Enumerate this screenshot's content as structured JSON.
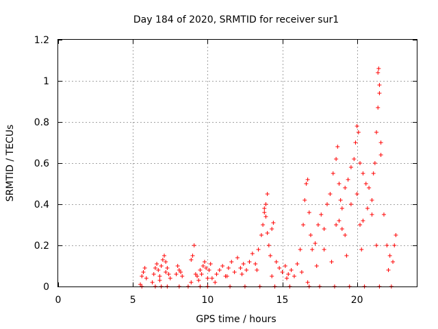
{
  "chart_data": {
    "type": "scatter",
    "title": "Day 184 of 2020, SRMTID for receiver sur1",
    "xlabel": "GPS time / hours",
    "ylabel": "SRMTID / TECUs",
    "xlim": [
      0,
      24
    ],
    "ylim": [
      0,
      1.2
    ],
    "xticks": [
      0,
      5,
      10,
      15,
      20
    ],
    "xtick_labels": [
      "0",
      "5",
      "10",
      "15",
      "20"
    ],
    "yticks": [
      0,
      0.2,
      0.4,
      0.6,
      0.8,
      1,
      1.2
    ],
    "ytick_labels": [
      "0",
      "0.2",
      "0.4",
      "0.6",
      "0.8",
      "1",
      "1.2"
    ],
    "grid": true,
    "marker": "+",
    "color": "#ff0000",
    "series": [
      {
        "name": "sur1",
        "x": [
          5.5,
          5.6,
          5.7,
          5.8,
          5.9,
          6.3,
          6.4,
          6.5,
          6.6,
          6.7,
          6.8,
          6.9,
          7.0,
          7.1,
          7.2,
          7.3,
          7.4,
          7.5,
          7.9,
          8.0,
          8.1,
          8.2,
          8.3,
          8.7,
          8.9,
          9.0,
          9.1,
          9.3,
          9.4,
          9.5,
          9.6,
          9.7,
          9.8,
          9.9,
          10.0,
          10.1,
          10.2,
          10.5,
          10.6,
          10.8,
          11.0,
          11.2,
          11.4,
          11.6,
          11.8,
          12.0,
          12.2,
          12.4,
          12.6,
          12.8,
          13.0,
          13.2,
          13.4,
          13.6,
          13.7,
          13.8,
          13.9,
          14.0,
          14.1,
          14.2,
          14.3,
          14.4,
          14.6,
          14.8,
          15.0,
          15.2,
          15.4,
          15.6,
          15.8,
          16.0,
          16.2,
          16.4,
          16.5,
          16.6,
          16.7,
          16.8,
          16.9,
          17.0,
          17.2,
          17.4,
          17.6,
          17.8,
          18.0,
          18.2,
          18.4,
          18.6,
          18.7,
          18.8,
          18.9,
          19.0,
          19.2,
          19.4,
          19.6,
          19.8,
          19.9,
          20.0,
          20.1,
          20.2,
          20.4,
          20.6,
          20.8,
          21.0,
          21.1,
          21.2,
          21.3,
          21.4,
          21.45,
          21.5,
          21.6,
          21.8,
          22.0,
          22.2,
          22.4,
          22.5,
          22.6,
          5.6,
          6.5,
          6.9,
          7.3,
          8.1,
          9.5,
          10.0,
          11.5,
          12.5,
          13.5,
          14.5,
          15.5,
          16.8,
          17.5,
          18.5,
          19.5,
          20.5,
          21.5,
          22.3,
          6.8,
          7.2,
          9.2,
          10.3,
          11.3,
          12.3,
          13.3,
          14.3,
          15.3,
          16.3,
          17.3,
          18.3,
          19.3,
          20.3,
          21.3,
          22.1,
          18.6,
          18.8,
          19.2,
          19.6,
          20.0,
          20.2,
          20.7,
          21.0,
          21.4,
          21.5,
          21.6,
          16.7,
          17.8,
          19.0,
          20.4,
          8.9,
          13.8,
          13.9,
          14.0
        ],
        "y": [
          0.01,
          0.05,
          0.07,
          0.09,
          0.04,
          0.02,
          0.06,
          0.09,
          0.11,
          0.08,
          0.05,
          0.1,
          0.13,
          0.15,
          0.12,
          0.09,
          0.06,
          0.04,
          0.06,
          0.1,
          0.08,
          0.07,
          0.05,
          0.0,
          0.02,
          0.15,
          0.2,
          0.05,
          0.03,
          0.08,
          0.06,
          0.1,
          0.12,
          0.09,
          0.04,
          0.08,
          0.11,
          0.02,
          0.06,
          0.08,
          0.1,
          0.05,
          0.09,
          0.12,
          0.07,
          0.14,
          0.09,
          0.11,
          0.08,
          0.12,
          0.16,
          0.11,
          0.18,
          0.25,
          0.3,
          0.36,
          0.4,
          0.45,
          0.2,
          0.15,
          0.28,
          0.31,
          0.12,
          0.09,
          0.07,
          0.1,
          0.06,
          0.08,
          0.05,
          0.11,
          0.18,
          0.3,
          0.42,
          0.5,
          0.52,
          0.36,
          0.25,
          0.18,
          0.21,
          0.3,
          0.35,
          0.28,
          0.4,
          0.45,
          0.55,
          0.62,
          0.68,
          0.5,
          0.42,
          0.38,
          0.48,
          0.52,
          0.58,
          0.62,
          0.7,
          0.78,
          0.75,
          0.6,
          0.55,
          0.5,
          0.48,
          0.35,
          0.55,
          0.6,
          0.75,
          1.04,
          1.06,
          0.98,
          0.7,
          0.35,
          0.2,
          0.15,
          0.12,
          0.2,
          0.25,
          0.0,
          0.0,
          0.0,
          0.0,
          0.0,
          0.0,
          0.0,
          0.0,
          0.0,
          0.0,
          0.0,
          0.0,
          0.0,
          0.0,
          0.0,
          0.0,
          0.0,
          0.0,
          0.0,
          0.03,
          0.07,
          0.06,
          0.04,
          0.05,
          0.06,
          0.08,
          0.05,
          0.04,
          0.07,
          0.1,
          0.12,
          0.15,
          0.18,
          0.2,
          0.08,
          0.3,
          0.32,
          0.25,
          0.4,
          0.45,
          0.3,
          0.38,
          0.42,
          0.87,
          0.94,
          0.64,
          0.02,
          0.18,
          0.28,
          0.32,
          0.13,
          0.38,
          0.34,
          0.26
        ]
      }
    ]
  }
}
